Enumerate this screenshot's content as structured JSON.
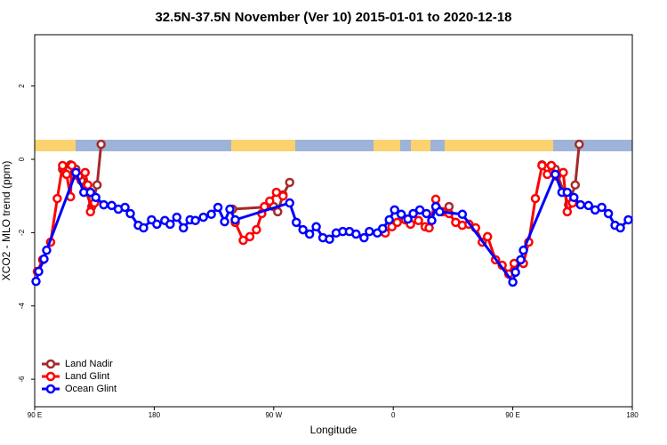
{
  "chart_data": {
    "type": "line",
    "title": "32.5N-37.5N November (Ver 10)   2015-01-01 to 2020-12-18",
    "xlabel": "Longitude",
    "ylabel": "XCO2 - MLO trend (ppm)",
    "xlim": [
      90,
      540
    ],
    "ylim": [
      -6.75,
      3.4
    ],
    "xticks": [
      {
        "value": 90,
        "label": "90 E"
      },
      180,
      {
        "value": 270,
        "label": "90 W"
      },
      {
        "value": 360,
        "label": "0"
      },
      {
        "value": 450,
        "label": "90 E"
      },
      {
        "value": 540,
        "label": "180"
      }
    ],
    "yticks": [
      -6,
      -4,
      -2,
      0,
      2
    ],
    "legend": "bottom-left",
    "series": [
      {
        "name": "Land Nadir",
        "color": "#a52a2a",
        "x": [
          111,
          117,
          121,
          125,
          133,
          137,
          140,
          null,
          239,
          270,
          273,
          277,
          282,
          null,
          402,
          null,
          472,
          479,
          482,
          492,
          497,
          500
        ],
        "values": [
          -0.27,
          -0.15,
          -0.27,
          -0.58,
          -1.29,
          -0.7,
          0.41,
          null,
          -1.36,
          -1.29,
          -1.43,
          -0.97,
          -0.63,
          null,
          -1.29,
          null,
          -0.15,
          -0.17,
          -0.27,
          -1.24,
          -0.7,
          0.41
        ]
      },
      {
        "name": "Land Glint",
        "color": "#ff0000",
        "x": [
          92,
          96,
          102,
          107,
          111,
          114,
          117,
          118,
          123,
          128,
          130,
          132,
          135,
          null,
          241,
          247,
          252,
          257,
          261,
          263,
          267,
          272,
          277,
          null,
          354,
          359,
          363,
          369,
          373,
          379,
          384,
          387,
          392,
          397,
          402,
          407,
          412,
          417,
          422,
          427,
          431,
          437,
          442,
          447,
          451,
          458,
          462,
          467,
          472,
          476,
          479,
          483,
          488,
          491,
          495
        ],
        "values": [
          -3.06,
          -2.74,
          -2.26,
          -1.07,
          -0.17,
          -0.41,
          -1.02,
          -0.17,
          -0.46,
          -0.36,
          -0.7,
          -1.43,
          -1.19,
          null,
          -1.72,
          -2.21,
          -2.11,
          -1.92,
          -1.48,
          -1.29,
          -1.14,
          -0.9,
          -1.0,
          null,
          -2.01,
          -1.84,
          -1.72,
          -1.65,
          -1.77,
          -1.67,
          -1.84,
          -1.87,
          -1.09,
          -1.43,
          -1.48,
          -1.72,
          -1.8,
          -1.77,
          -1.87,
          -2.26,
          -2.11,
          -2.74,
          -2.89,
          -3.13,
          -2.84,
          -2.84,
          -2.26,
          -1.07,
          -0.17,
          -0.41,
          -0.17,
          -0.46,
          -0.36,
          -1.43,
          -1.19
        ]
      },
      {
        "name": "Ocean Glint",
        "color": "#0000ff",
        "x": [
          91,
          93,
          97,
          99,
          121,
          127,
          132,
          136,
          142,
          148,
          153,
          158,
          162,
          168,
          172,
          178,
          182,
          188,
          192,
          197,
          202,
          207,
          211,
          217,
          223,
          228,
          233,
          237,
          241,
          282,
          287,
          292,
          297,
          302,
          307,
          312,
          317,
          322,
          327,
          332,
          338,
          342,
          348,
          352,
          357,
          361,
          366,
          371,
          375,
          380,
          385,
          389,
          392,
          395,
          412,
          450,
          452,
          456,
          458,
          482,
          487,
          491,
          496,
          501,
          507,
          512,
          517,
          522,
          527,
          531,
          537
        ],
        "values": [
          -3.33,
          -3.06,
          -2.72,
          -2.48,
          -0.36,
          -0.9,
          -0.9,
          -1.04,
          -1.24,
          -1.26,
          -1.36,
          -1.31,
          -1.48,
          -1.8,
          -1.87,
          -1.65,
          -1.77,
          -1.67,
          -1.77,
          -1.58,
          -1.87,
          -1.65,
          -1.67,
          -1.58,
          -1.5,
          -1.31,
          -1.7,
          -1.36,
          -1.65,
          -1.19,
          -1.72,
          -1.92,
          -2.04,
          -1.84,
          -2.14,
          -2.18,
          -2.01,
          -1.97,
          -1.97,
          -2.04,
          -2.14,
          -1.97,
          -2.01,
          -1.89,
          -1.65,
          -1.38,
          -1.5,
          -1.63,
          -1.48,
          -1.38,
          -1.48,
          -1.67,
          -1.29,
          -1.43,
          -1.5,
          -3.35,
          -3.08,
          -2.74,
          -2.48,
          -0.41,
          -0.9,
          -0.9,
          -1.04,
          -1.24,
          -1.26,
          -1.38,
          -1.31,
          -1.48,
          -1.8,
          -1.87,
          -1.65
        ]
      }
    ]
  }
}
